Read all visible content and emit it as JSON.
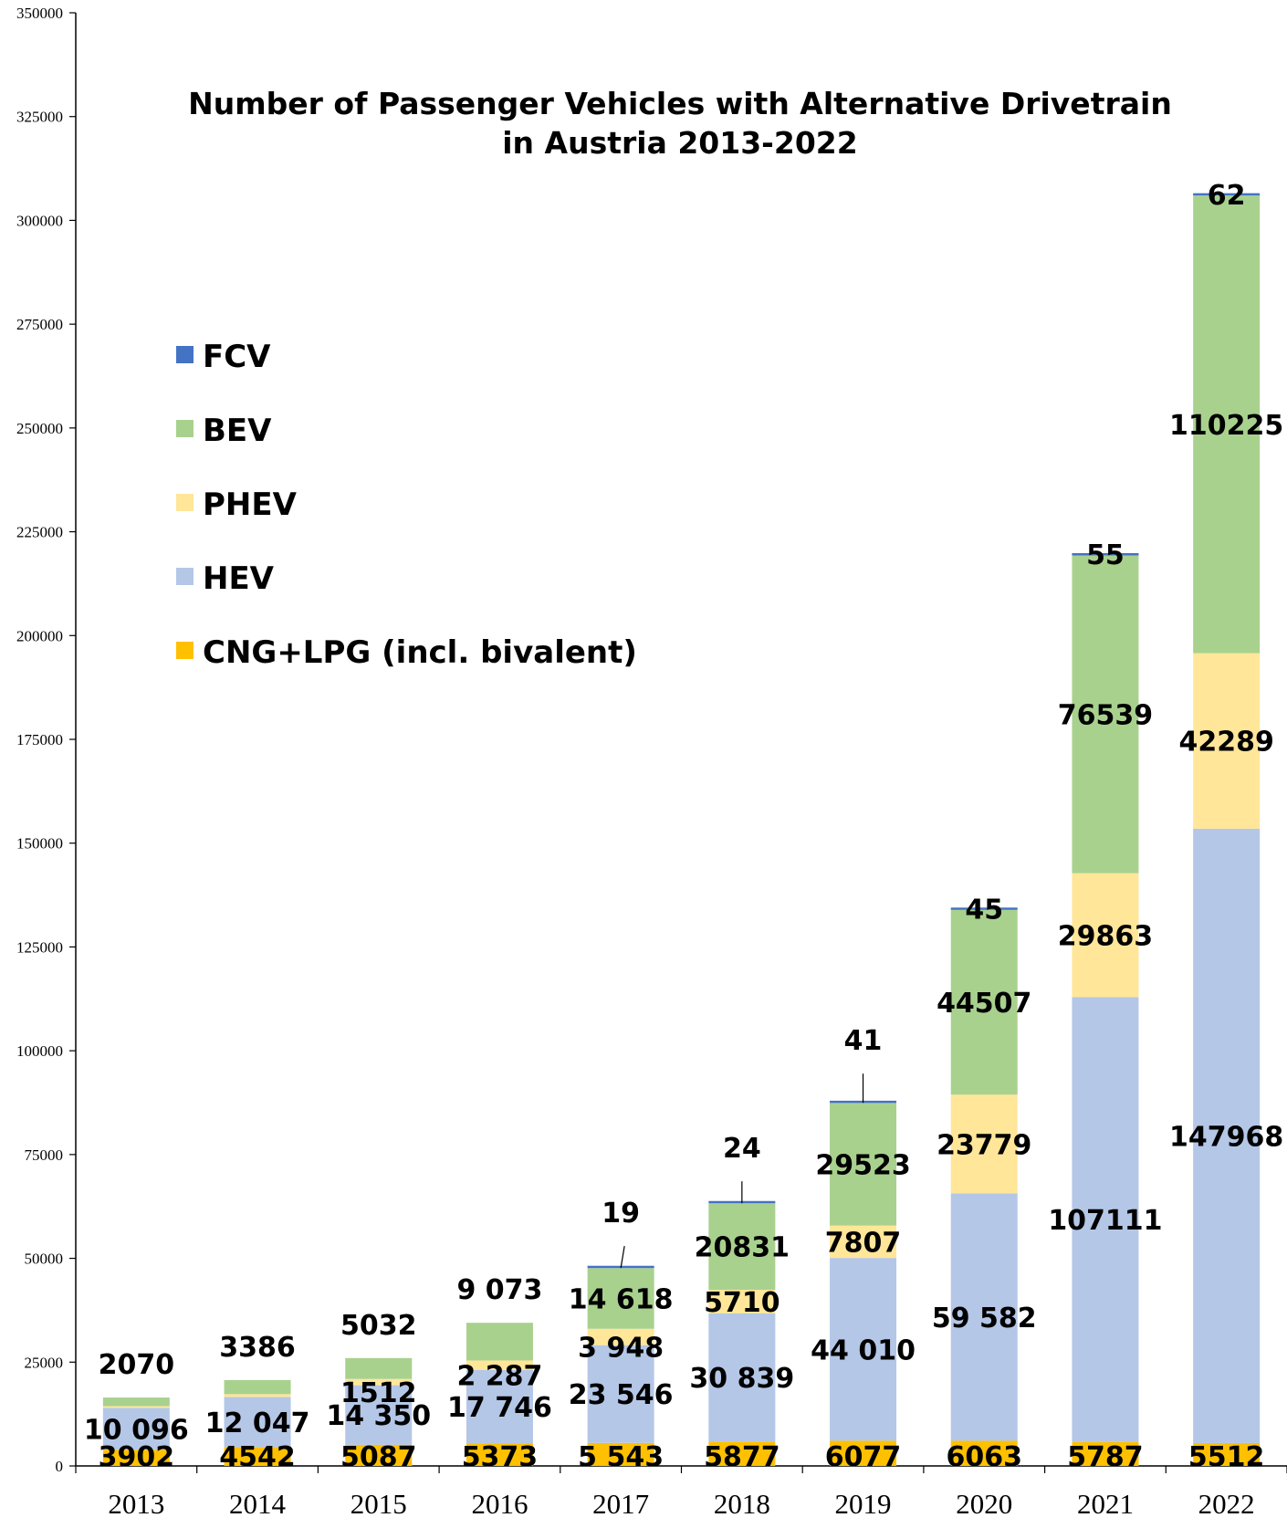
{
  "chart_data": {
    "type": "bar",
    "stacked": true,
    "title": "Number of Passenger Vehicles with Alternative Drivetrain",
    "subtitle": "in Austria 2013-2022",
    "xlabel": "",
    "ylabel": "",
    "ylim": [
      0,
      350000
    ],
    "yticks": [
      0,
      25000,
      50000,
      75000,
      100000,
      125000,
      150000,
      175000,
      200000,
      225000,
      250000,
      275000,
      300000,
      325000,
      350000
    ],
    "grid": false,
    "legend_position": "left",
    "categories": [
      "2013",
      "2014",
      "2015",
      "2016",
      "2017",
      "2018",
      "2019",
      "2020",
      "2021",
      "2022"
    ],
    "series": [
      {
        "name": "CNG+LPG (incl. bivalent)",
        "color": "#FFC000",
        "values": [
          3902,
          4542,
          5087,
          5373,
          5543,
          5877,
          6077,
          6063,
          5787,
          5512
        ],
        "labels": [
          "3902",
          "4542",
          "5087",
          "5373",
          "5 543",
          "5877",
          "6077",
          "6063",
          "5787",
          "5512"
        ]
      },
      {
        "name": "HEV",
        "color": "#B4C7E7",
        "values": [
          10096,
          12047,
          14350,
          17746,
          23546,
          30839,
          44010,
          59582,
          107111,
          147968
        ],
        "labels": [
          "10 096",
          "12 047",
          "14 350",
          "17 746",
          "23 546",
          "30 839",
          "44 010",
          "59 582",
          "107111",
          "147968"
        ]
      },
      {
        "name": "PHEV",
        "color": "#FFE699",
        "values": [
          400,
          700,
          1512,
          2287,
          3948,
          5710,
          7807,
          23779,
          29863,
          42289
        ],
        "labels": [
          "",
          "",
          "1512",
          "2 287",
          "3 948",
          "5710",
          "7807",
          "23779",
          "29863",
          "42289"
        ]
      },
      {
        "name": "BEV",
        "color": "#A9D18E",
        "values": [
          2070,
          3386,
          5032,
          9073,
          14618,
          20831,
          29523,
          44507,
          76539,
          110225
        ],
        "labels": [
          "2070",
          "3386",
          "5032",
          "9 073",
          "14 618",
          "20831",
          "29523",
          "44507",
          "76539",
          "110225"
        ]
      },
      {
        "name": "FCV",
        "color": "#4472C4",
        "values": [
          0,
          0,
          0,
          0,
          19,
          24,
          41,
          45,
          55,
          62
        ],
        "labels": [
          "",
          "",
          "",
          "",
          "19",
          "24",
          "41",
          "45",
          "55",
          "62"
        ]
      }
    ]
  }
}
